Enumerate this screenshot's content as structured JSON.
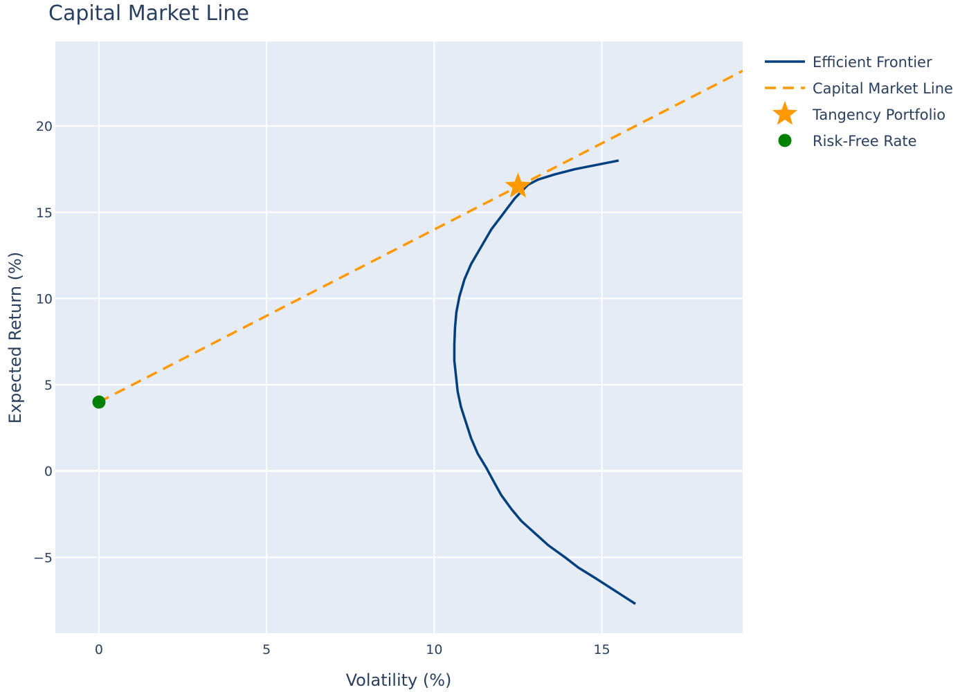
{
  "chart_data": {
    "type": "line",
    "title": "Capital Market Line",
    "xlabel": "Volatility (%)",
    "ylabel": "Expected Return (%)",
    "xlim": [
      -1.3,
      19.2
    ],
    "ylim": [
      -9.4,
      24.9
    ],
    "x_ticks": [
      0,
      5,
      10,
      15
    ],
    "x_tick_labels": [
      "0",
      "5",
      "10",
      "15"
    ],
    "y_ticks": [
      -5,
      0,
      5,
      10,
      15,
      20
    ],
    "y_tick_labels": [
      "−5",
      "0",
      "5",
      "10",
      "15",
      "20"
    ],
    "grid": true,
    "plot_background": "#e5ecf6",
    "legend_position": "top-right",
    "series": [
      {
        "name": "Efficient Frontier",
        "kind": "line",
        "color": "#003f7f",
        "dash": "solid",
        "x": [
          16.0,
          15.6,
          15.2,
          14.8,
          14.3,
          13.9,
          13.4,
          13.0,
          12.6,
          12.3,
          12.0,
          11.8,
          11.55,
          11.3,
          11.1,
          10.95,
          10.8,
          10.7,
          10.65,
          10.6,
          10.6,
          10.62,
          10.66,
          10.75,
          10.9,
          11.1,
          11.4,
          11.7,
          12.05,
          12.4,
          12.8,
          13.1,
          13.6,
          14.2,
          15.5
        ],
        "y": [
          -7.7,
          -7.2,
          -6.7,
          -6.2,
          -5.6,
          -5.0,
          -4.3,
          -3.6,
          -2.9,
          -2.2,
          -1.4,
          -0.7,
          0.2,
          1.0,
          1.9,
          2.8,
          3.7,
          4.6,
          5.5,
          6.4,
          7.3,
          8.3,
          9.2,
          10.1,
          11.1,
          12.0,
          13.0,
          14.0,
          14.9,
          15.8,
          16.6,
          16.9,
          17.2,
          17.5,
          18.0
        ]
      },
      {
        "name": "Capital Market Line",
        "kind": "line",
        "color": "#ff9900",
        "dash": "dashed",
        "x": [
          0,
          19.2
        ],
        "y": [
          4.0,
          23.2
        ]
      },
      {
        "name": "Tangency Portfolio",
        "kind": "marker",
        "marker": "star",
        "color": "#ff9900",
        "x": [
          12.5
        ],
        "y": [
          16.5
        ]
      },
      {
        "name": "Risk-Free Rate",
        "kind": "marker",
        "marker": "circle",
        "color": "#008000",
        "x": [
          0
        ],
        "y": [
          4.0
        ]
      }
    ]
  }
}
